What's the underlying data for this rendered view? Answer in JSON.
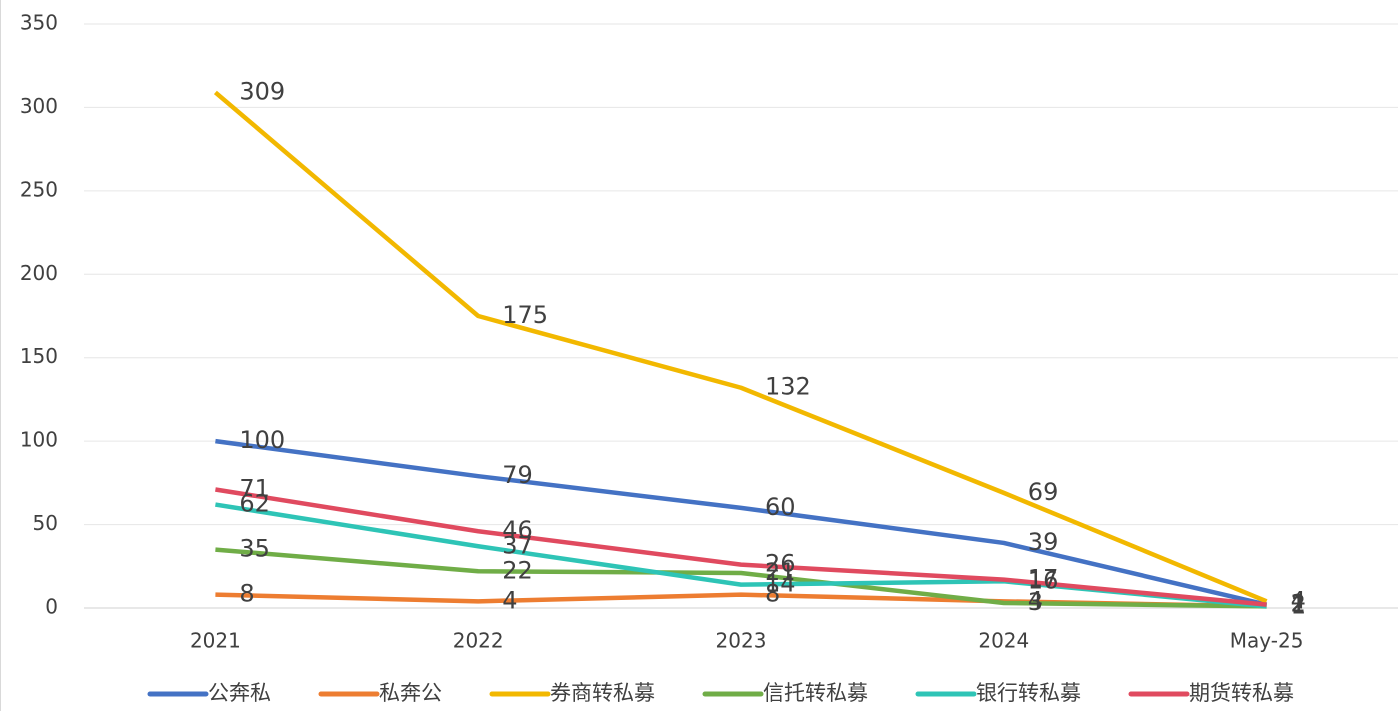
{
  "chart_data": {
    "type": "line",
    "categories": [
      "2021",
      "2022",
      "2023",
      "2024",
      "May-25"
    ],
    "series": [
      {
        "name": "公奔私",
        "color": "#4472c4",
        "values": [
          100,
          79,
          60,
          39,
          2
        ]
      },
      {
        "name": "私奔公",
        "color": "#ed7d31",
        "values": [
          8,
          4,
          8,
          4,
          1
        ]
      },
      {
        "name": "券商转私募",
        "color": "#f2b800",
        "values": [
          309,
          175,
          132,
          69,
          4
        ]
      },
      {
        "name": "信托转私募",
        "color": "#70ad47",
        "values": [
          35,
          22,
          21,
          3,
          1
        ]
      },
      {
        "name": "银行转私募",
        "color": "#2ec4b6",
        "values": [
          62,
          37,
          14,
          16,
          1
        ]
      },
      {
        "name": "期货转私募",
        "color": "#e04a5f",
        "values": [
          71,
          46,
          26,
          17,
          2
        ]
      }
    ],
    "ylim": [
      0,
      350
    ],
    "yticks": [
      0,
      50,
      100,
      150,
      200,
      250,
      300,
      350
    ],
    "grid": true,
    "legend": "bottom"
  }
}
